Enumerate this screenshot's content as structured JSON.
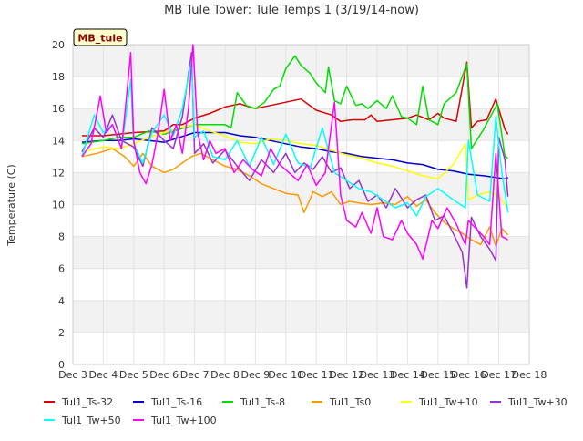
{
  "chart_data": {
    "type": "line",
    "title": "MB Tule Tower: Tule Temps 1 (3/19/14-now)",
    "xlabel": "",
    "ylabel": "Temperature (C)",
    "site_label": "MB_tule",
    "xlim": [
      3,
      18
    ],
    "ylim": [
      0,
      20
    ],
    "y_ticks": [
      0,
      2,
      4,
      6,
      8,
      10,
      12,
      14,
      16,
      18,
      20
    ],
    "x_ticks": [
      {
        "value": 3,
        "label": "Dec 3"
      },
      {
        "value": 4,
        "label": "Dec 4"
      },
      {
        "value": 5,
        "label": "Dec 5"
      },
      {
        "value": 6,
        "label": "Dec 6"
      },
      {
        "value": 7,
        "label": "Dec 7"
      },
      {
        "value": 8,
        "label": "Dec 8"
      },
      {
        "value": 9,
        "label": "Dec 9"
      },
      {
        "value": 10,
        "label": "Dec 10"
      },
      {
        "value": 11,
        "label": "Dec 11"
      },
      {
        "value": 12,
        "label": "Dec 12"
      },
      {
        "value": 13,
        "label": "Dec 13"
      },
      {
        "value": 14,
        "label": "Dec 14"
      },
      {
        "value": 15,
        "label": "Dec 15"
      },
      {
        "value": 16,
        "label": "Dec 16"
      },
      {
        "value": 17,
        "label": "Dec 17"
      },
      {
        "value": 18,
        "label": "Dec 18"
      }
    ],
    "series": [
      {
        "name": "Tul1_Ts-32",
        "color": "#dd0000",
        "x": [
          3.3,
          4,
          5,
          6,
          6.3,
          6.6,
          7,
          7.5,
          8,
          8.5,
          8.8,
          9,
          9.5,
          10,
          10.5,
          11,
          11.5,
          11.8,
          12.2,
          12.6,
          12.8,
          13,
          13.5,
          14,
          14.3,
          14.7,
          15,
          15.2,
          15.6,
          15.95,
          16.1,
          16.3,
          16.6,
          16.9,
          17.2,
          17.3
        ],
        "y": [
          14.3,
          14.3,
          14.5,
          14.6,
          15.0,
          15.0,
          15.4,
          15.7,
          16.1,
          16.3,
          16.1,
          16.0,
          16.2,
          16.4,
          16.6,
          15.9,
          15.6,
          15.2,
          15.3,
          15.3,
          15.6,
          15.2,
          15.3,
          15.4,
          15.6,
          15.3,
          15.7,
          15.4,
          15.2,
          18.9,
          14.8,
          15.2,
          15.3,
          16.6,
          14.7,
          14.4
        ]
      },
      {
        "name": "Tul1_Ts-16",
        "color": "#0000cc",
        "x": [
          3.3,
          4,
          4.5,
          5,
          5.5,
          6,
          6.5,
          7,
          7.5,
          8,
          8.5,
          9,
          9.5,
          10,
          10.5,
          11,
          11.5,
          12,
          12.5,
          13,
          13.5,
          14,
          14.5,
          15,
          15.5,
          16,
          16.5,
          16.9,
          17.2,
          17.3
        ],
        "y": [
          13.9,
          14.0,
          14.0,
          14.1,
          14.0,
          13.9,
          14.2,
          14.5,
          14.5,
          14.5,
          14.3,
          14.2,
          14.0,
          13.8,
          13.6,
          13.5,
          13.3,
          13.2,
          13.0,
          12.9,
          12.8,
          12.6,
          12.5,
          12.2,
          12.1,
          11.9,
          11.8,
          11.7,
          11.6,
          11.7
        ]
      },
      {
        "name": "Tul1_Ts-8",
        "color": "#00dd00",
        "x": [
          3.3,
          4,
          4.5,
          5,
          5.5,
          6,
          6.5,
          7,
          7.5,
          8,
          8.2,
          8.4,
          8.7,
          9,
          9.3,
          9.6,
          9.8,
          10,
          10.3,
          10.5,
          10.8,
          11,
          11.3,
          11.4,
          11.6,
          11.8,
          12,
          12.3,
          12.5,
          12.7,
          13,
          13.3,
          13.5,
          13.8,
          14,
          14.3,
          14.5,
          14.7,
          15,
          15.2,
          15.6,
          15.95,
          16.1,
          16.5,
          16.95,
          17.2,
          17.3
        ],
        "y": [
          13.8,
          14.0,
          14.2,
          14.2,
          14.6,
          14.4,
          14.7,
          15.0,
          15.0,
          15.0,
          14.8,
          17.0,
          16.2,
          16.0,
          16.4,
          17.2,
          17.4,
          18.5,
          19.3,
          18.7,
          18.2,
          17.6,
          17.0,
          18.6,
          16.5,
          16.3,
          17.4,
          16.2,
          16.3,
          16.0,
          16.5,
          16.0,
          16.8,
          15.5,
          15.4,
          15.0,
          17.4,
          15.3,
          15.0,
          16.3,
          17.0,
          18.8,
          13.5,
          14.7,
          16.3,
          13.0,
          12.9
        ]
      },
      {
        "name": "Tul1_Ts0",
        "color": "#ff9900",
        "x": [
          3.3,
          3.8,
          4.3,
          4.7,
          5.0,
          5.3,
          5.6,
          6.0,
          6.3,
          6.6,
          6.9,
          7.2,
          7.6,
          8.0,
          8.4,
          8.8,
          9.2,
          9.6,
          10.0,
          10.4,
          10.6,
          10.9,
          11.2,
          11.5,
          11.8,
          12.1,
          12.4,
          12.8,
          13.2,
          13.6,
          14.0,
          14.3,
          14.6,
          14.9,
          15.2,
          15.5,
          15.8,
          16.1,
          16.4,
          16.7,
          16.9,
          17.1,
          17.3
        ],
        "y": [
          13.0,
          13.2,
          13.5,
          13.0,
          12.4,
          13.2,
          12.4,
          12.0,
          12.2,
          12.6,
          13.0,
          13.2,
          12.8,
          12.4,
          12.2,
          11.8,
          11.3,
          11.0,
          10.7,
          10.6,
          9.5,
          10.8,
          10.5,
          10.8,
          10.0,
          10.2,
          10.1,
          10.0,
          10.1,
          10.0,
          10.5,
          9.9,
          10.3,
          9.5,
          8.9,
          8.5,
          8.2,
          7.8,
          7.5,
          8.6,
          7.4,
          8.5,
          8.1
        ]
      },
      {
        "name": "Tul1_Tw+10",
        "color": "#ffff00",
        "x": [
          3.3,
          4,
          4.5,
          5,
          5.5,
          6,
          6.5,
          7,
          7.5,
          8,
          8.5,
          9,
          9.5,
          10,
          10.5,
          11,
          11.5,
          12,
          12.5,
          13,
          13.5,
          14,
          14.5,
          15,
          15.5,
          15.9,
          16.0,
          16.3,
          16.7,
          17.0,
          17.3
        ],
        "y": [
          13.3,
          13.6,
          13.5,
          13.8,
          14.2,
          14.5,
          14.8,
          15.0,
          14.6,
          14.3,
          13.9,
          13.8,
          14.1,
          14.0,
          13.8,
          13.7,
          13.4,
          13.1,
          12.9,
          12.6,
          12.4,
          12.1,
          11.8,
          11.6,
          12.5,
          13.8,
          10.3,
          10.6,
          10.8,
          10.5,
          9.8
        ]
      },
      {
        "name": "Tul1_Tw+30",
        "color": "#9933cc",
        "x": [
          3.3,
          3.7,
          4.0,
          4.3,
          4.6,
          5.0,
          5.3,
          5.6,
          6.0,
          6.3,
          6.6,
          6.9,
          7.0,
          7.3,
          7.6,
          8.0,
          8.4,
          8.8,
          9.2,
          9.6,
          10.0,
          10.3,
          10.6,
          10.9,
          11.2,
          11.5,
          11.8,
          12.1,
          12.4,
          12.7,
          13.0,
          13.3,
          13.6,
          14.0,
          14.3,
          14.6,
          14.9,
          15.2,
          15.5,
          15.8,
          15.95,
          16.1,
          16.4,
          16.7,
          16.9,
          17.0,
          17.2,
          17.3
        ],
        "y": [
          13.3,
          14.8,
          14.2,
          15.6,
          14.0,
          13.6,
          12.4,
          14.8,
          14.0,
          13.5,
          15.5,
          19.5,
          13.2,
          13.8,
          12.6,
          13.4,
          12.4,
          11.5,
          12.8,
          12.0,
          13.2,
          12.0,
          12.6,
          12.2,
          13.0,
          12.0,
          12.3,
          11.0,
          11.5,
          10.2,
          10.6,
          9.8,
          11.0,
          9.8,
          10.3,
          10.6,
          9.0,
          9.3,
          8.2,
          7.0,
          4.8,
          9.2,
          8.0,
          7.2,
          6.5,
          14.2,
          12.8,
          10.5
        ]
      },
      {
        "name": "Tul1_Tw+50",
        "color": "#00ffff",
        "x": [
          3.3,
          3.7,
          4.0,
          4.3,
          4.6,
          4.9,
          5.0,
          5.3,
          5.6,
          6.0,
          6.3,
          6.6,
          6.9,
          7.0,
          7.3,
          7.6,
          8.0,
          8.4,
          8.8,
          9.2,
          9.6,
          10.0,
          10.4,
          10.8,
          11.2,
          11.6,
          12.0,
          12.4,
          12.8,
          13.2,
          13.6,
          14.0,
          14.3,
          14.6,
          15.0,
          15.5,
          15.9,
          16.0,
          16.3,
          16.7,
          16.9,
          17.1,
          17.3
        ],
        "y": [
          13.0,
          15.6,
          14.5,
          15.0,
          13.5,
          17.8,
          13.8,
          12.6,
          14.5,
          15.6,
          14.3,
          16.0,
          19.0,
          14.2,
          14.6,
          13.0,
          12.8,
          14.0,
          12.4,
          14.2,
          12.5,
          14.4,
          12.6,
          12.3,
          14.8,
          12.0,
          11.5,
          11.0,
          10.8,
          10.3,
          9.8,
          10.1,
          9.3,
          10.5,
          11.0,
          10.3,
          9.8,
          14.0,
          10.6,
          10.2,
          15.5,
          12.0,
          9.5
        ]
      },
      {
        "name": "Tul1_Tw+100",
        "color": "#ff00ff",
        "x": [
          3.3,
          3.6,
          3.9,
          4.1,
          4.3,
          4.6,
          4.9,
          5.0,
          5.2,
          5.4,
          5.6,
          5.8,
          6.0,
          6.2,
          6.4,
          6.6,
          6.8,
          6.95,
          7.1,
          7.3,
          7.5,
          7.7,
          8.0,
          8.3,
          8.6,
          8.9,
          9.2,
          9.5,
          9.8,
          10.1,
          10.4,
          10.7,
          11.0,
          11.3,
          11.6,
          11.8,
          12.0,
          12.3,
          12.5,
          12.8,
          13.0,
          13.2,
          13.5,
          13.8,
          14.0,
          14.3,
          14.5,
          14.8,
          15.0,
          15.3,
          15.6,
          15.9,
          16.0,
          16.2,
          16.5,
          16.7,
          16.9,
          17.1,
          17.3
        ],
        "y": [
          13.0,
          13.8,
          16.8,
          14.5,
          15.0,
          13.5,
          19.5,
          14.0,
          12.0,
          11.3,
          12.5,
          14.5,
          17.2,
          14.0,
          15.0,
          13.2,
          16.0,
          20.0,
          14.5,
          12.8,
          14.0,
          13.2,
          13.5,
          12.0,
          12.8,
          12.2,
          11.8,
          13.5,
          12.5,
          12.0,
          11.5,
          12.5,
          11.2,
          12.0,
          16.4,
          10.6,
          9.0,
          8.6,
          9.5,
          8.2,
          9.8,
          8.0,
          7.8,
          9.0,
          8.2,
          7.5,
          6.6,
          9.0,
          8.5,
          9.8,
          8.8,
          7.5,
          9.0,
          8.6,
          8.0,
          7.5,
          13.2,
          8.0,
          7.8
        ]
      }
    ]
  }
}
